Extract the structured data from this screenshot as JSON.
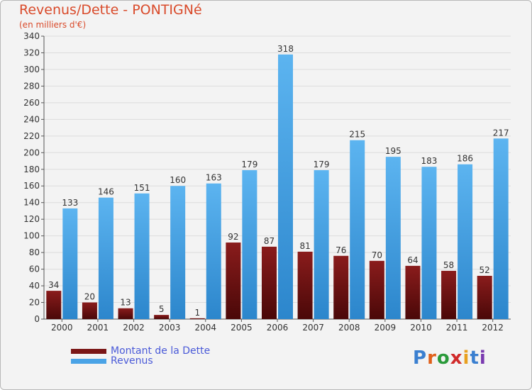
{
  "chart_data": {
    "type": "bar",
    "title": "Revenus/Dette - PONTIGNé",
    "subtitle": "(en milliers d'€)",
    "categories": [
      "2000",
      "2001",
      "2002",
      "2003",
      "2004",
      "2005",
      "2006",
      "2007",
      "2008",
      "2009",
      "2010",
      "2011",
      "2012"
    ],
    "series": [
      {
        "name": "Montant de la Dette",
        "color": "#7a1616",
        "values": [
          34,
          20,
          13,
          5,
          1,
          92,
          87,
          81,
          76,
          70,
          64,
          58,
          52
        ]
      },
      {
        "name": "Revenus",
        "color": "#4aa3e6",
        "values": [
          133,
          146,
          151,
          160,
          163,
          179,
          318,
          179,
          215,
          195,
          183,
          186,
          217
        ]
      }
    ],
    "ylim": [
      0,
      340
    ],
    "yticks": [
      0,
      20,
      40,
      60,
      80,
      100,
      120,
      140,
      160,
      180,
      200,
      220,
      240,
      260,
      280,
      300,
      320,
      340
    ],
    "grid": true,
    "legend_position": "bottom-left"
  },
  "logo": {
    "letters": [
      "P",
      "r",
      "o",
      "x",
      "i",
      "t",
      "i"
    ],
    "colors": [
      "#3a7fd0",
      "#e0601a",
      "#2a9a3a",
      "#d02a2a",
      "#e8a020",
      "#3a7fd0",
      "#7a3ab0"
    ]
  }
}
